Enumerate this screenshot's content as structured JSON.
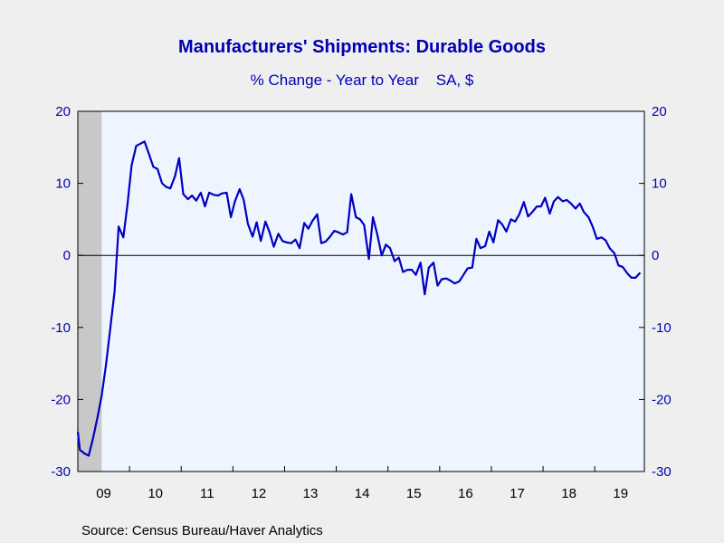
{
  "chart_data": {
    "type": "line",
    "title": "Manufacturers' Shipments: Durable Goods",
    "subtitle": "% Change - Year to Year    SA, $",
    "source": "Source:  Census Bureau/Haver Analytics",
    "xlabel": "",
    "ylabel": "",
    "ylim": [
      -30,
      20
    ],
    "yticks": [
      20,
      10,
      0,
      -10,
      -20,
      -30
    ],
    "ytick_labels": [
      "20",
      "10",
      "0",
      "-10",
      "-20",
      "-30"
    ],
    "x_tick_labels": [
      "09",
      "10",
      "11",
      "12",
      "13",
      "14",
      "15",
      "16",
      "17",
      "18",
      "19"
    ],
    "x_range": [
      2009.0,
      2019.96
    ],
    "recession_shading": [
      2009.0,
      2009.46
    ],
    "grid": false,
    "zero_line": true,
    "colors": {
      "line": "#0000c0",
      "text": "#0000b3",
      "plot_background": "#eef5ff",
      "page_background": "#efefef",
      "recession": "#c8c8c8"
    },
    "series": [
      {
        "values": [
          [
            2009.0,
            -24.5
          ],
          [
            2009.04,
            -27.0
          ],
          [
            2009.13,
            -27.5
          ],
          [
            2009.21,
            -27.8
          ],
          [
            2009.29,
            -25.5
          ],
          [
            2009.38,
            -22.5
          ],
          [
            2009.46,
            -19.5
          ],
          [
            2009.54,
            -15.5
          ],
          [
            2009.63,
            -10.0
          ],
          [
            2009.71,
            -5.0
          ],
          [
            2009.79,
            4.0
          ],
          [
            2009.88,
            2.5
          ],
          [
            2009.96,
            7.0
          ],
          [
            2010.04,
            12.5
          ],
          [
            2010.13,
            15.2
          ],
          [
            2010.21,
            15.5
          ],
          [
            2010.29,
            15.8
          ],
          [
            2010.38,
            14.0
          ],
          [
            2010.46,
            12.3
          ],
          [
            2010.54,
            12.0
          ],
          [
            2010.63,
            10.0
          ],
          [
            2010.71,
            9.5
          ],
          [
            2010.79,
            9.3
          ],
          [
            2010.88,
            11.0
          ],
          [
            2010.96,
            13.5
          ],
          [
            2011.04,
            8.5
          ],
          [
            2011.13,
            7.8
          ],
          [
            2011.21,
            8.3
          ],
          [
            2011.29,
            7.6
          ],
          [
            2011.38,
            8.7
          ],
          [
            2011.46,
            6.8
          ],
          [
            2011.54,
            8.7
          ],
          [
            2011.63,
            8.4
          ],
          [
            2011.71,
            8.3
          ],
          [
            2011.79,
            8.6
          ],
          [
            2011.88,
            8.7
          ],
          [
            2011.96,
            5.3
          ],
          [
            2012.04,
            7.5
          ],
          [
            2012.13,
            9.2
          ],
          [
            2012.21,
            7.7
          ],
          [
            2012.29,
            4.4
          ],
          [
            2012.38,
            2.6
          ],
          [
            2012.46,
            4.6
          ],
          [
            2012.54,
            2.0
          ],
          [
            2012.63,
            4.7
          ],
          [
            2012.71,
            3.2
          ],
          [
            2012.79,
            1.2
          ],
          [
            2012.88,
            3.0
          ],
          [
            2012.96,
            2.0
          ],
          [
            2013.04,
            1.8
          ],
          [
            2013.13,
            1.7
          ],
          [
            2013.21,
            2.2
          ],
          [
            2013.29,
            1.0
          ],
          [
            2013.38,
            4.5
          ],
          [
            2013.46,
            3.7
          ],
          [
            2013.54,
            4.8
          ],
          [
            2013.63,
            5.7
          ],
          [
            2013.71,
            1.7
          ],
          [
            2013.79,
            1.9
          ],
          [
            2013.88,
            2.6
          ],
          [
            2013.96,
            3.4
          ],
          [
            2014.04,
            3.2
          ],
          [
            2014.13,
            2.9
          ],
          [
            2014.21,
            3.2
          ],
          [
            2014.29,
            8.5
          ],
          [
            2014.38,
            5.3
          ],
          [
            2014.46,
            5.0
          ],
          [
            2014.54,
            4.2
          ],
          [
            2014.63,
            -0.5
          ],
          [
            2014.71,
            5.3
          ],
          [
            2014.79,
            3.0
          ],
          [
            2014.88,
            0.0
          ],
          [
            2014.96,
            1.5
          ],
          [
            2015.04,
            1.0
          ],
          [
            2015.13,
            -0.8
          ],
          [
            2015.21,
            -0.3
          ],
          [
            2015.29,
            -2.3
          ],
          [
            2015.38,
            -2.0
          ],
          [
            2015.46,
            -2.0
          ],
          [
            2015.54,
            -2.7
          ],
          [
            2015.63,
            -1.0
          ],
          [
            2015.71,
            -5.4
          ],
          [
            2015.79,
            -1.7
          ],
          [
            2015.88,
            -1.0
          ],
          [
            2015.96,
            -4.2
          ],
          [
            2016.04,
            -3.3
          ],
          [
            2016.13,
            -3.2
          ],
          [
            2016.21,
            -3.5
          ],
          [
            2016.29,
            -3.9
          ],
          [
            2016.38,
            -3.6
          ],
          [
            2016.46,
            -2.7
          ],
          [
            2016.54,
            -1.8
          ],
          [
            2016.63,
            -1.7
          ],
          [
            2016.71,
            2.3
          ],
          [
            2016.79,
            1.0
          ],
          [
            2016.88,
            1.3
          ],
          [
            2016.96,
            3.3
          ],
          [
            2017.04,
            1.8
          ],
          [
            2017.13,
            4.9
          ],
          [
            2017.21,
            4.3
          ],
          [
            2017.29,
            3.3
          ],
          [
            2017.38,
            5.0
          ],
          [
            2017.46,
            4.7
          ],
          [
            2017.54,
            5.7
          ],
          [
            2017.63,
            7.4
          ],
          [
            2017.71,
            5.4
          ],
          [
            2017.79,
            6.0
          ],
          [
            2017.88,
            6.8
          ],
          [
            2017.96,
            6.8
          ],
          [
            2018.04,
            8.0
          ],
          [
            2018.13,
            5.8
          ],
          [
            2018.21,
            7.5
          ],
          [
            2018.29,
            8.1
          ],
          [
            2018.38,
            7.5
          ],
          [
            2018.46,
            7.7
          ],
          [
            2018.54,
            7.2
          ],
          [
            2018.63,
            6.5
          ],
          [
            2018.71,
            7.2
          ],
          [
            2018.79,
            6.0
          ],
          [
            2018.88,
            5.3
          ],
          [
            2018.96,
            4.0
          ],
          [
            2019.04,
            2.3
          ],
          [
            2019.13,
            2.5
          ],
          [
            2019.21,
            2.1
          ],
          [
            2019.29,
            1.0
          ],
          [
            2019.38,
            0.3
          ],
          [
            2019.46,
            -1.4
          ],
          [
            2019.54,
            -1.6
          ],
          [
            2019.63,
            -2.5
          ],
          [
            2019.71,
            -3.1
          ],
          [
            2019.79,
            -3.1
          ],
          [
            2019.88,
            -2.4
          ]
        ]
      }
    ]
  }
}
